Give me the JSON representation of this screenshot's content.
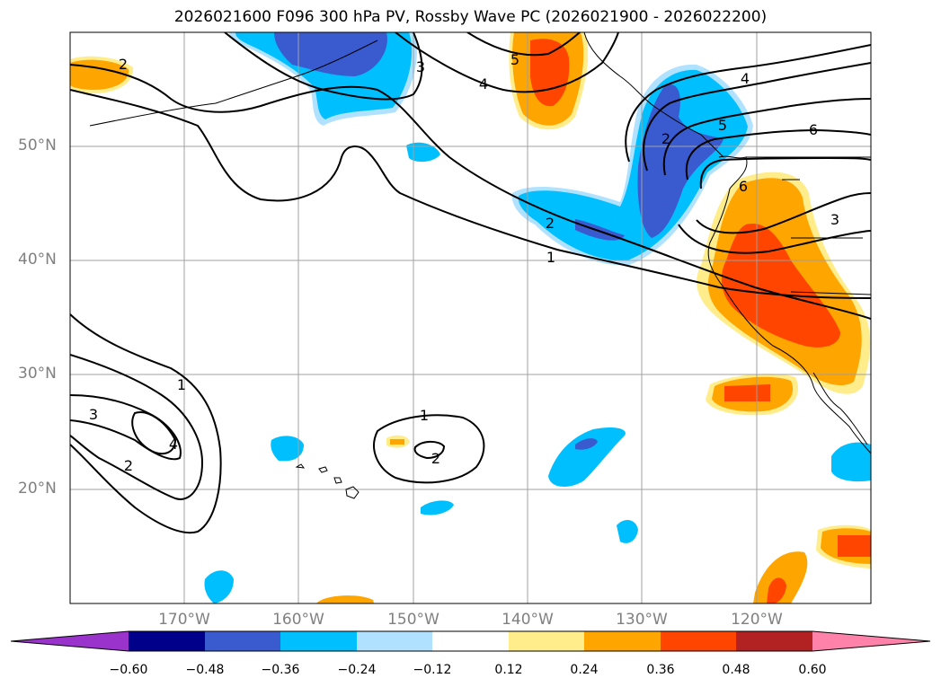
{
  "title": "2026021600 F096 300 hPa PV, Rossby Wave PC (2026021900 - 2026022200)",
  "lat_labels": [
    "50°N",
    "40°N",
    "30°N",
    "20°N"
  ],
  "lon_labels": [
    "170°W",
    "160°W",
    "150°W",
    "140°W",
    "130°W",
    "120°W"
  ],
  "contour_labels": [
    "2",
    "3",
    "4",
    "5",
    "4",
    "6",
    "5",
    "6",
    "2",
    "1",
    "3",
    "2",
    "1",
    "3",
    "4",
    "2",
    "1",
    "2"
  ],
  "colorbar": {
    "ticks": [
      "−0.60",
      "−0.48",
      "−0.36",
      "−0.24",
      "−0.12",
      "0.12",
      "0.24",
      "0.36",
      "0.48",
      "0.60"
    ],
    "colors": [
      "#9933cc",
      "#00008b",
      "#3a5bd0",
      "#00bfff",
      "#b0e2ff",
      "#ffffff",
      "#ffec8b",
      "#ffa500",
      "#ff4500",
      "#b22222",
      "#ff82ab"
    ]
  }
}
